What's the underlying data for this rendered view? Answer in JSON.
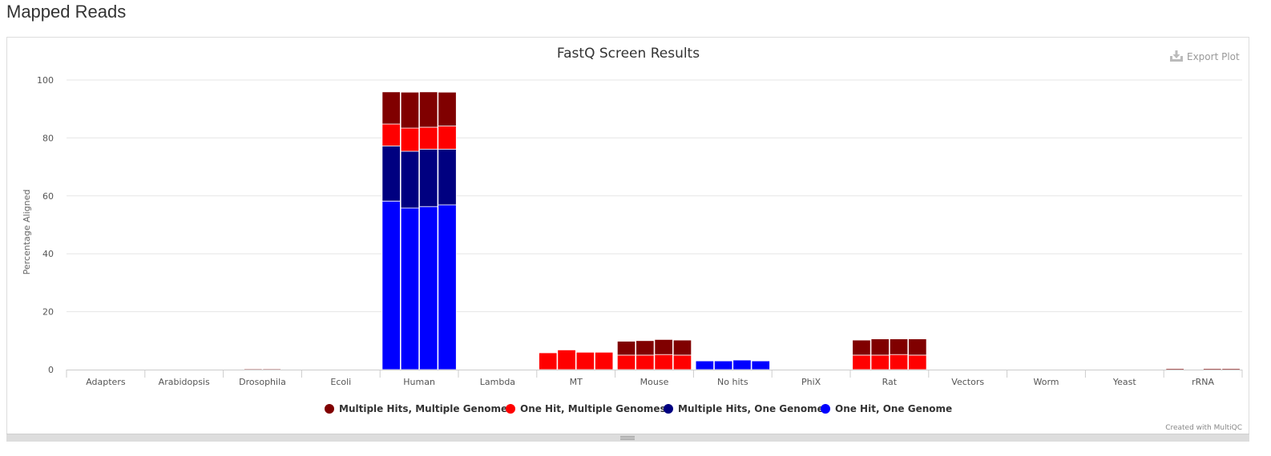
{
  "page": {
    "heading": "Mapped Reads"
  },
  "toolbar": {
    "export_label": "Export Plot"
  },
  "credit": "Created with MultiQC",
  "colors": {
    "multiple_hits_multiple_genomes": "#800000",
    "one_hit_multiple_genomes": "#ff0000",
    "multiple_hits_one_genome": "#000080",
    "one_hit_one_genome": "#0000ff",
    "grid": "#e6e6e6",
    "axis": "#cccccc"
  },
  "chart_data": {
    "type": "bar",
    "stacked": true,
    "title": "FastQ Screen Results",
    "xlabel": "",
    "ylabel": "Percentage Aligned",
    "ylim": [
      0,
      100
    ],
    "yticks": [
      0,
      20,
      40,
      60,
      80,
      100
    ],
    "grid": true,
    "legend_position": "bottom-center",
    "samples_per_category": 4,
    "categories": [
      "Adapters",
      "Arabidopsis",
      "Drosophila",
      "Ecoli",
      "Human",
      "Lambda",
      "MT",
      "Mouse",
      "No hits",
      "PhiX",
      "Rat",
      "Vectors",
      "Worm",
      "Yeast",
      "rRNA"
    ],
    "series": [
      {
        "name": "One Hit, One Genome",
        "color": "#0000ff",
        "values": [
          [
            0,
            0,
            0,
            0
          ],
          [
            0,
            0,
            0,
            0
          ],
          [
            0,
            0,
            0,
            0
          ],
          [
            0,
            0,
            0,
            0
          ],
          [
            58.2,
            55.8,
            56.3,
            56.9
          ],
          [
            0,
            0,
            0,
            0
          ],
          [
            0,
            0,
            0,
            0
          ],
          [
            0,
            0,
            0,
            0
          ],
          [
            3.0,
            3.0,
            3.3,
            3.0
          ],
          [
            0,
            0,
            0,
            0
          ],
          [
            0,
            0,
            0,
            0
          ],
          [
            0,
            0,
            0,
            0
          ],
          [
            0,
            0,
            0,
            0
          ],
          [
            0,
            0,
            0,
            0
          ],
          [
            0,
            0,
            0,
            0
          ]
        ]
      },
      {
        "name": "Multiple Hits, One Genome",
        "color": "#000080",
        "values": [
          [
            0,
            0,
            0,
            0
          ],
          [
            0,
            0,
            0,
            0
          ],
          [
            0,
            0,
            0,
            0
          ],
          [
            0,
            0,
            0,
            0
          ],
          [
            19.0,
            19.6,
            19.8,
            19.2
          ],
          [
            0,
            0,
            0,
            0
          ],
          [
            0,
            0,
            0,
            0
          ],
          [
            0,
            0,
            0,
            0
          ],
          [
            0,
            0,
            0,
            0
          ],
          [
            0,
            0,
            0,
            0
          ],
          [
            0,
            0,
            0,
            0
          ],
          [
            0,
            0,
            0,
            0
          ],
          [
            0,
            0,
            0,
            0
          ],
          [
            0,
            0,
            0,
            0
          ],
          [
            0,
            0,
            0,
            0
          ]
        ]
      },
      {
        "name": "One Hit, Multiple Genomes",
        "color": "#ff0000",
        "values": [
          [
            0,
            0,
            0,
            0
          ],
          [
            0,
            0,
            0,
            0
          ],
          [
            0,
            0,
            0,
            0
          ],
          [
            0,
            0,
            0,
            0
          ],
          [
            7.6,
            8.0,
            7.6,
            8.0
          ],
          [
            0,
            0,
            0,
            0
          ],
          [
            5.8,
            6.8,
            6.0,
            6.0
          ],
          [
            5.0,
            5.0,
            5.2,
            5.0
          ],
          [
            0,
            0,
            0,
            0
          ],
          [
            0,
            0,
            0,
            0
          ],
          [
            5.0,
            5.0,
            5.2,
            5.0
          ],
          [
            0,
            0,
            0,
            0
          ],
          [
            0,
            0,
            0,
            0
          ],
          [
            0,
            0,
            0,
            0
          ],
          [
            0,
            0,
            0,
            0
          ]
        ]
      },
      {
        "name": "Multiple Hits, Multiple Genomes",
        "color": "#800000",
        "values": [
          [
            0,
            0,
            0,
            0
          ],
          [
            0,
            0,
            0,
            0
          ],
          [
            0,
            0.3,
            0.3,
            0
          ],
          [
            0,
            0,
            0,
            0
          ],
          [
            11.1,
            12.4,
            12.2,
            11.7
          ],
          [
            0,
            0,
            0,
            0
          ],
          [
            0,
            0,
            0,
            0
          ],
          [
            4.8,
            5.0,
            5.2,
            5.2
          ],
          [
            0,
            0,
            0,
            0
          ],
          [
            0,
            0,
            0,
            0
          ],
          [
            5.2,
            5.6,
            5.4,
            5.6
          ],
          [
            0,
            0,
            0,
            0
          ],
          [
            0,
            0,
            0,
            0
          ],
          [
            0,
            0,
            0,
            0
          ],
          [
            0.4,
            0,
            0.4,
            0.4
          ]
        ]
      }
    ],
    "legend_order": [
      "Multiple Hits, Multiple Genomes",
      "One Hit, Multiple Genomes",
      "Multiple Hits, One Genome",
      "One Hit, One Genome"
    ]
  }
}
